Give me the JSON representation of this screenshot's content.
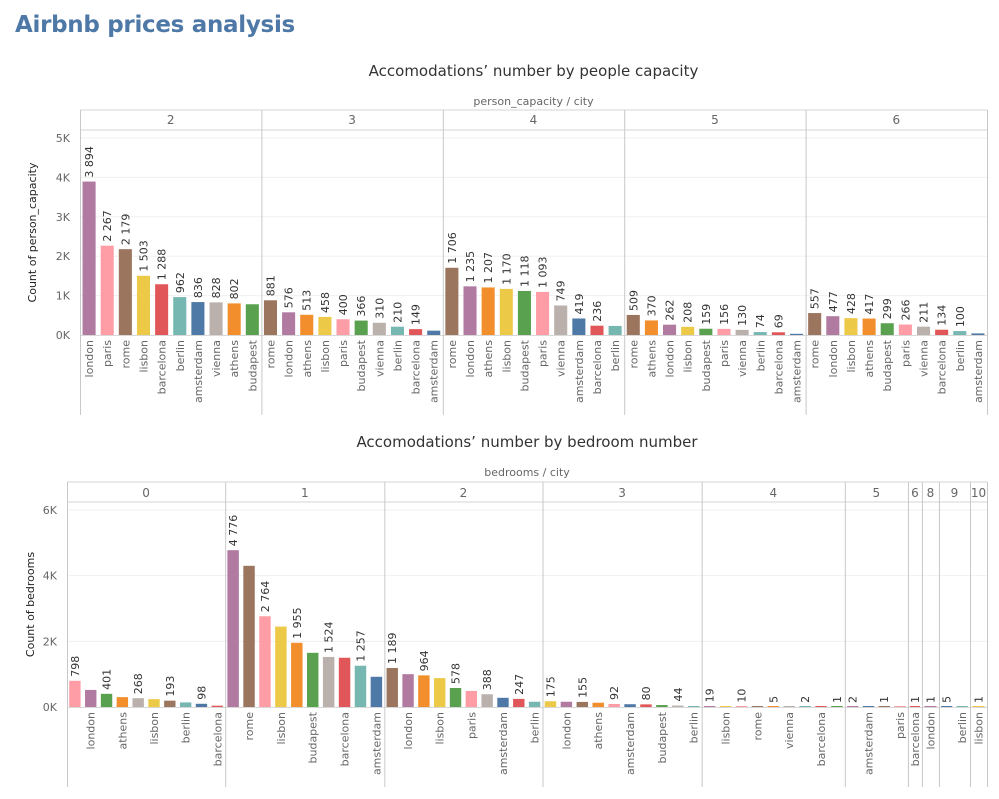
{
  "page_title": "Airbnb prices analysis",
  "colors": {
    "title": "#4e79a7",
    "london": "#b07aa1",
    "paris": "#ff9da7",
    "rome": "#9c755f",
    "lisbon": "#edc948",
    "barcelona": "#e15759",
    "berlin": "#76b7b2",
    "amsterdam": "#4e79a7",
    "vienna": "#bab0ac",
    "athens": "#f28e2b",
    "budapest": "#59a14f"
  },
  "chart_data": [
    {
      "type": "bar",
      "title": "Accomodations’ number by people capacity",
      "facet_header": "person_capacity / city",
      "ylabel": "Count of person_capacity",
      "yticks": [
        "0K",
        "1K",
        "2K",
        "3K",
        "4K",
        "5K"
      ],
      "ylim": [
        0,
        5000
      ],
      "panels": [
        {
          "label": "2",
          "bars": [
            {
              "city": "london",
              "value": 3894,
              "label": "3 894"
            },
            {
              "city": "paris",
              "value": 2267,
              "label": "2 267"
            },
            {
              "city": "rome",
              "value": 2179,
              "label": "2 179"
            },
            {
              "city": "lisbon",
              "value": 1503,
              "label": "1 503"
            },
            {
              "city": "barcelona",
              "value": 1288,
              "label": "1 288"
            },
            {
              "city": "berlin",
              "value": 962,
              "label": "962"
            },
            {
              "city": "amsterdam",
              "value": 836,
              "label": "836"
            },
            {
              "city": "vienna",
              "value": 828,
              "label": "828"
            },
            {
              "city": "athens",
              "value": 802,
              "label": "802"
            },
            {
              "city": "budapest",
              "value": 780,
              "label": ""
            }
          ]
        },
        {
          "label": "3",
          "bars": [
            {
              "city": "rome",
              "value": 881,
              "label": "881"
            },
            {
              "city": "london",
              "value": 576,
              "label": "576"
            },
            {
              "city": "athens",
              "value": 513,
              "label": "513"
            },
            {
              "city": "lisbon",
              "value": 458,
              "label": "458"
            },
            {
              "city": "paris",
              "value": 400,
              "label": "400"
            },
            {
              "city": "budapest",
              "value": 366,
              "label": "366"
            },
            {
              "city": "vienna",
              "value": 310,
              "label": "310"
            },
            {
              "city": "berlin",
              "value": 210,
              "label": "210"
            },
            {
              "city": "barcelona",
              "value": 149,
              "label": "149"
            },
            {
              "city": "amsterdam",
              "value": 110,
              "label": ""
            }
          ]
        },
        {
          "label": "4",
          "bars": [
            {
              "city": "rome",
              "value": 1706,
              "label": "1 706"
            },
            {
              "city": "london",
              "value": 1235,
              "label": "1 235"
            },
            {
              "city": "athens",
              "value": 1207,
              "label": "1 207"
            },
            {
              "city": "lisbon",
              "value": 1170,
              "label": "1 170"
            },
            {
              "city": "budapest",
              "value": 1118,
              "label": "1 118"
            },
            {
              "city": "paris",
              "value": 1093,
              "label": "1 093"
            },
            {
              "city": "vienna",
              "value": 749,
              "label": "749"
            },
            {
              "city": "amsterdam",
              "value": 419,
              "label": "419"
            },
            {
              "city": "barcelona",
              "value": 236,
              "label": "236"
            },
            {
              "city": "berlin",
              "value": 230,
              "label": ""
            }
          ]
        },
        {
          "label": "5",
          "bars": [
            {
              "city": "rome",
              "value": 509,
              "label": "509"
            },
            {
              "city": "athens",
              "value": 370,
              "label": "370"
            },
            {
              "city": "london",
              "value": 262,
              "label": "262"
            },
            {
              "city": "lisbon",
              "value": 208,
              "label": "208"
            },
            {
              "city": "budapest",
              "value": 159,
              "label": "159"
            },
            {
              "city": "paris",
              "value": 156,
              "label": "156"
            },
            {
              "city": "vienna",
              "value": 130,
              "label": "130"
            },
            {
              "city": "berlin",
              "value": 74,
              "label": "74"
            },
            {
              "city": "barcelona",
              "value": 69,
              "label": "69"
            },
            {
              "city": "amsterdam",
              "value": 30,
              "label": ""
            }
          ]
        },
        {
          "label": "6",
          "bars": [
            {
              "city": "rome",
              "value": 557,
              "label": "557"
            },
            {
              "city": "london",
              "value": 477,
              "label": "477"
            },
            {
              "city": "lisbon",
              "value": 428,
              "label": "428"
            },
            {
              "city": "athens",
              "value": 417,
              "label": "417"
            },
            {
              "city": "budapest",
              "value": 299,
              "label": "299"
            },
            {
              "city": "paris",
              "value": 266,
              "label": "266"
            },
            {
              "city": "vienna",
              "value": 211,
              "label": "211"
            },
            {
              "city": "barcelona",
              "value": 134,
              "label": "134"
            },
            {
              "city": "berlin",
              "value": 100,
              "label": "100"
            },
            {
              "city": "amsterdam",
              "value": 40,
              "label": ""
            }
          ]
        }
      ]
    },
    {
      "type": "bar",
      "title": "Accomodations’ number by bedroom number",
      "facet_header": "bedrooms / city",
      "ylabel": "Count of bedrooms",
      "yticks": [
        "0K",
        "2K",
        "4K",
        "6K"
      ],
      "ylim": [
        0,
        6000
      ],
      "panels": [
        {
          "label": "0",
          "bars": [
            {
              "city": "paris",
              "value": 798,
              "label": "798"
            },
            {
              "city": "london",
              "value": 520,
              "label": ""
            },
            {
              "city": "budapest",
              "value": 401,
              "label": "401"
            },
            {
              "city": "athens",
              "value": 300,
              "label": ""
            },
            {
              "city": "vienna",
              "value": 268,
              "label": "268"
            },
            {
              "city": "lisbon",
              "value": 240,
              "label": ""
            },
            {
              "city": "rome",
              "value": 193,
              "label": "193"
            },
            {
              "city": "berlin",
              "value": 140,
              "label": ""
            },
            {
              "city": "amsterdam",
              "value": 98,
              "label": "98"
            },
            {
              "city": "barcelona",
              "value": 40,
              "label": ""
            }
          ]
        },
        {
          "label": "1",
          "bars": [
            {
              "city": "london",
              "value": 4776,
              "label": "4 776"
            },
            {
              "city": "rome",
              "value": 4300,
              "label": ""
            },
            {
              "city": "paris",
              "value": 2764,
              "label": "2 764"
            },
            {
              "city": "lisbon",
              "value": 2450,
              "label": ""
            },
            {
              "city": "athens",
              "value": 1955,
              "label": "1 955"
            },
            {
              "city": "budapest",
              "value": 1650,
              "label": ""
            },
            {
              "city": "vienna",
              "value": 1524,
              "label": "1 524"
            },
            {
              "city": "barcelona",
              "value": 1500,
              "label": ""
            },
            {
              "city": "berlin",
              "value": 1257,
              "label": "1 257"
            },
            {
              "city": "amsterdam",
              "value": 920,
              "label": ""
            }
          ]
        },
        {
          "label": "2",
          "bars": [
            {
              "city": "rome",
              "value": 1189,
              "label": "1 189"
            },
            {
              "city": "london",
              "value": 1000,
              "label": ""
            },
            {
              "city": "athens",
              "value": 964,
              "label": "964"
            },
            {
              "city": "lisbon",
              "value": 880,
              "label": ""
            },
            {
              "city": "budapest",
              "value": 578,
              "label": "578"
            },
            {
              "city": "paris",
              "value": 490,
              "label": ""
            },
            {
              "city": "vienna",
              "value": 388,
              "label": "388"
            },
            {
              "city": "amsterdam",
              "value": 280,
              "label": ""
            },
            {
              "city": "barcelona",
              "value": 247,
              "label": "247"
            },
            {
              "city": "berlin",
              "value": 160,
              "label": ""
            }
          ]
        },
        {
          "label": "3",
          "bars": [
            {
              "city": "lisbon",
              "value": 175,
              "label": "175"
            },
            {
              "city": "london",
              "value": 160,
              "label": ""
            },
            {
              "city": "rome",
              "value": 155,
              "label": "155"
            },
            {
              "city": "athens",
              "value": 130,
              "label": ""
            },
            {
              "city": "paris",
              "value": 92,
              "label": "92"
            },
            {
              "city": "amsterdam",
              "value": 85,
              "label": ""
            },
            {
              "city": "barcelona",
              "value": 80,
              "label": "80"
            },
            {
              "city": "budapest",
              "value": 60,
              "label": ""
            },
            {
              "city": "vienna",
              "value": 44,
              "label": "44"
            },
            {
              "city": "berlin",
              "value": 20,
              "label": ""
            }
          ]
        },
        {
          "label": "4",
          "bars": [
            {
              "city": "london",
              "value": 19,
              "label": "19"
            },
            {
              "city": "lisbon",
              "value": 15,
              "label": ""
            },
            {
              "city": "paris",
              "value": 10,
              "label": "10"
            },
            {
              "city": "rome",
              "value": 7,
              "label": ""
            },
            {
              "city": "athens",
              "value": 5,
              "label": "5"
            },
            {
              "city": "vienna",
              "value": 3,
              "label": ""
            },
            {
              "city": "berlin",
              "value": 2,
              "label": "2"
            },
            {
              "city": "barcelona",
              "value": 1,
              "label": ""
            },
            {
              "city": "budapest",
              "value": 1,
              "label": "1"
            }
          ]
        },
        {
          "label": "5",
          "bars": [
            {
              "city": "london",
              "value": 2,
              "label": "2"
            },
            {
              "city": "amsterdam",
              "value": 1,
              "label": ""
            },
            {
              "city": "rome",
              "value": 1,
              "label": "1"
            },
            {
              "city": "paris",
              "value": 1,
              "label": ""
            }
          ]
        },
        {
          "label": "6",
          "bars": [
            {
              "city": "barcelona",
              "value": 1,
              "label": "1"
            }
          ]
        },
        {
          "label": "8",
          "bars": [
            {
              "city": "london",
              "value": 1,
              "label": "1"
            }
          ]
        },
        {
          "label": "9",
          "bars": [
            {
              "city": "amsterdam",
              "value": 5,
              "label": "5"
            },
            {
              "city": "berlin",
              "value": 1,
              "label": ""
            }
          ]
        },
        {
          "label": "10",
          "bars": [
            {
              "city": "lisbon",
              "value": 1,
              "label": "1"
            }
          ]
        }
      ]
    }
  ]
}
